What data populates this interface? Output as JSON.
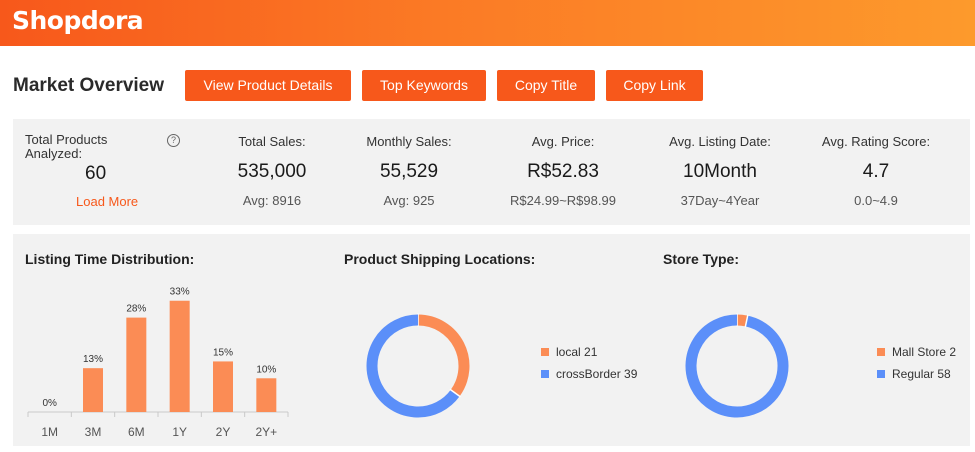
{
  "header": {
    "logo": "Shopdora"
  },
  "title": "Market Overview",
  "buttons": {
    "view_product_details": "View Product Details",
    "top_keywords": "Top Keywords",
    "copy_title": "Copy Title",
    "copy_link": "Copy Link"
  },
  "stats": {
    "total_products": {
      "label": "Total Products Analyzed:",
      "value": "60",
      "action": "Load More"
    },
    "total_sales": {
      "label": "Total Sales:",
      "value": "535,000",
      "sub": "Avg: 8916"
    },
    "monthly_sales": {
      "label": "Monthly Sales:",
      "value": "55,529",
      "sub": "Avg: 925"
    },
    "avg_price": {
      "label": "Avg. Price:",
      "value": "R$52.83",
      "sub": "R$24.99~R$98.99"
    },
    "avg_listing_date": {
      "label": "Avg. Listing Date:",
      "value": "10Month",
      "sub": "37Day~4Year"
    },
    "avg_rating": {
      "label": "Avg. Rating Score:",
      "value": "4.7",
      "sub": "0.0~4.9"
    }
  },
  "sections": {
    "listing_time": "Listing Time Distribution:",
    "shipping": "Product Shipping Locations:",
    "store_type": "Store Type:"
  },
  "colors": {
    "accent": "#f7581b",
    "bar": "#fb8c55",
    "orange_slice": "#fb8c55",
    "blue_slice": "#5b8ff9",
    "panel": "#f2f2f2"
  },
  "chart_data": [
    {
      "type": "bar",
      "categories": [
        "1M",
        "3M",
        "6M",
        "1Y",
        "2Y",
        "2Y+"
      ],
      "values": [
        0,
        13,
        28,
        33,
        15,
        10
      ],
      "data_labels": [
        "0%",
        "13%",
        "28%",
        "33%",
        "15%",
        "10%"
      ],
      "ylim": [
        0,
        35
      ]
    },
    {
      "type": "pie",
      "donut": true,
      "labels": [
        "local",
        "crossBorder"
      ],
      "values": [
        21,
        39
      ],
      "legend": [
        "local 21",
        "crossBorder 39"
      ],
      "colors": [
        "#fb8c55",
        "#5b8ff9"
      ]
    },
    {
      "type": "pie",
      "donut": true,
      "labels": [
        "Mall Store",
        "Regular"
      ],
      "values": [
        2,
        58
      ],
      "legend": [
        "Mall Store 2",
        "Regular 58"
      ],
      "colors": [
        "#fb8c55",
        "#5b8ff9"
      ]
    }
  ]
}
